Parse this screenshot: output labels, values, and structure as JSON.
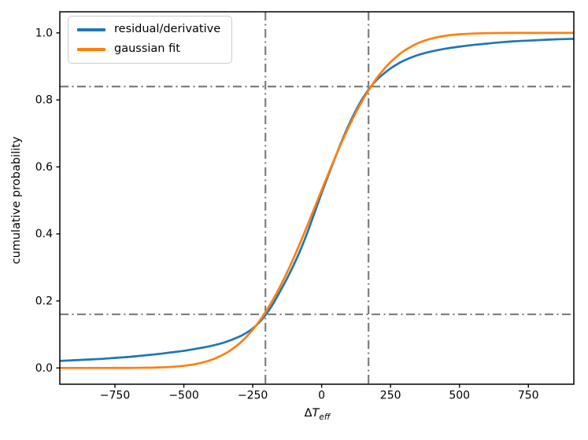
{
  "figure": {
    "ylabel": "cumulative probability",
    "xlabel_parts": {
      "symbol": "Δ",
      "letter": "T",
      "sub": "eff"
    }
  },
  "chart_data": {
    "type": "line",
    "title": "",
    "xlabel": "ΔT_eff",
    "ylabel": "cumulative probability",
    "xlim": [
      -950,
      915
    ],
    "ylim": [
      -0.0485,
      1.063
    ],
    "grid": false,
    "legend_position": "upper left",
    "x_tick_values": [
      -750,
      -500,
      -250,
      0,
      250,
      500,
      750
    ],
    "x_tick_labels": [
      "−750",
      "−500",
      "−250",
      "0",
      "250",
      "500",
      "750"
    ],
    "y_tick_values": [
      0.0,
      0.2,
      0.4,
      0.6,
      0.8,
      1.0
    ],
    "y_tick_labels": [
      "0.0",
      "0.2",
      "0.4",
      "0.6",
      "0.8",
      "1.0"
    ],
    "axis_color": "#000000",
    "guides": {
      "style": "dashdot",
      "color": "#7f7f7f",
      "vlines": [
        -204,
        170
      ],
      "hlines": [
        0.16,
        0.84
      ]
    },
    "series": [
      {
        "name": "residual/derivative",
        "color": "#1f77b4",
        "points": [
          [
            -950,
            0.021
          ],
          [
            -900,
            0.023
          ],
          [
            -850,
            0.025
          ],
          [
            -800,
            0.027
          ],
          [
            -750,
            0.03
          ],
          [
            -700,
            0.033
          ],
          [
            -650,
            0.037
          ],
          [
            -600,
            0.041
          ],
          [
            -550,
            0.046
          ],
          [
            -500,
            0.051
          ],
          [
            -450,
            0.058
          ],
          [
            -400,
            0.066
          ],
          [
            -350,
            0.077
          ],
          [
            -300,
            0.093
          ],
          [
            -275,
            0.104
          ],
          [
            -250,
            0.118
          ],
          [
            -225,
            0.137
          ],
          [
            -200,
            0.162
          ],
          [
            -175,
            0.193
          ],
          [
            -150,
            0.23
          ],
          [
            -125,
            0.268
          ],
          [
            -100,
            0.31
          ],
          [
            -75,
            0.356
          ],
          [
            -50,
            0.408
          ],
          [
            -25,
            0.465
          ],
          [
            0,
            0.522
          ],
          [
            25,
            0.577
          ],
          [
            50,
            0.63
          ],
          [
            75,
            0.681
          ],
          [
            100,
            0.728
          ],
          [
            125,
            0.77
          ],
          [
            150,
            0.806
          ],
          [
            175,
            0.836
          ],
          [
            200,
            0.86
          ],
          [
            225,
            0.878
          ],
          [
            250,
            0.894
          ],
          [
            275,
            0.907
          ],
          [
            300,
            0.918
          ],
          [
            350,
            0.934
          ],
          [
            400,
            0.945
          ],
          [
            450,
            0.953
          ],
          [
            500,
            0.959
          ],
          [
            550,
            0.964
          ],
          [
            600,
            0.968
          ],
          [
            650,
            0.972
          ],
          [
            700,
            0.975
          ],
          [
            750,
            0.977
          ],
          [
            800,
            0.979
          ],
          [
            850,
            0.981
          ],
          [
            900,
            0.982
          ],
          [
            915,
            0.982
          ]
        ]
      },
      {
        "name": "gaussian fit",
        "color": "#ff7f0e",
        "points": [
          [
            -950,
            0.0
          ],
          [
            -900,
            0.0
          ],
          [
            -850,
            0.0
          ],
          [
            -800,
            0.0
          ],
          [
            -750,
            0.0001
          ],
          [
            -700,
            0.0002
          ],
          [
            -650,
            0.0006
          ],
          [
            -600,
            0.0013
          ],
          [
            -550,
            0.003
          ],
          [
            -500,
            0.0064
          ],
          [
            -450,
            0.0129
          ],
          [
            -400,
            0.0242
          ],
          [
            -350,
            0.0429
          ],
          [
            -325,
            0.056
          ],
          [
            -300,
            0.0718
          ],
          [
            -275,
            0.0912
          ],
          [
            -250,
            0.1141
          ],
          [
            -225,
            0.1408
          ],
          [
            -200,
            0.1714
          ],
          [
            -175,
            0.2061
          ],
          [
            -150,
            0.2444
          ],
          [
            -125,
            0.2862
          ],
          [
            -100,
            0.3314
          ],
          [
            -75,
            0.379
          ],
          [
            -50,
            0.4288
          ],
          [
            -25,
            0.4796
          ],
          [
            0,
            0.5306
          ],
          [
            25,
            0.5812
          ],
          [
            50,
            0.6306
          ],
          [
            75,
            0.6779
          ],
          [
            100,
            0.7224
          ],
          [
            125,
            0.7636
          ],
          [
            150,
            0.8012
          ],
          [
            175,
            0.8348
          ],
          [
            200,
            0.865
          ],
          [
            225,
            0.8907
          ],
          [
            250,
            0.9129
          ],
          [
            275,
            0.9313
          ],
          [
            300,
            0.9469
          ],
          [
            350,
            0.9694
          ],
          [
            400,
            0.9833
          ],
          [
            450,
            0.9915
          ],
          [
            500,
            0.9959
          ],
          [
            550,
            0.9981
          ],
          [
            600,
            0.9992
          ],
          [
            650,
            0.9997
          ],
          [
            700,
            0.9999
          ],
          [
            750,
            1.0
          ],
          [
            800,
            1.0
          ],
          [
            850,
            1.0
          ],
          [
            900,
            1.0
          ],
          [
            915,
            1.0
          ]
        ]
      }
    ]
  }
}
